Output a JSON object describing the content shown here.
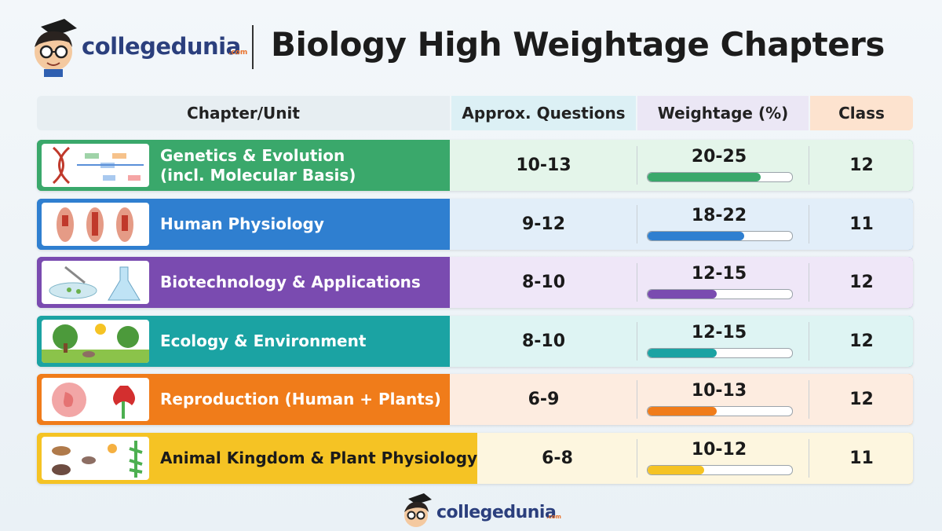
{
  "header": {
    "logo": "collegedunia",
    "logo_suffix": ".com",
    "title": "Biology High Weightage Chapters"
  },
  "table": {
    "columns": [
      "Chapter/Unit",
      "Approx. Questions",
      "Weightage (%)",
      "Class"
    ],
    "rows": [
      {
        "chapter": [
          "Genetics & Evolution",
          "(incl. Molecular Basis)"
        ],
        "questions": "10-13",
        "weightage": "20-25",
        "bar_fill": 78,
        "class": 12,
        "color": "#3aa86b",
        "tint": "#e4f5ea"
      },
      {
        "chapter": [
          "Human Physiology"
        ],
        "questions": "9-12",
        "weightage": "18-22",
        "bar_fill": 67,
        "class": 11,
        "color": "#2f7fd0",
        "tint": "#e2eef9"
      },
      {
        "chapter": [
          "Biotechnology & Applications"
        ],
        "questions": "8-10",
        "weightage": "12-15",
        "bar_fill": 48,
        "class": 12,
        "color": "#7a4bb0",
        "tint": "#efe7f8"
      },
      {
        "chapter": [
          "Ecology & Environment"
        ],
        "questions": "8-10",
        "weightage": "12-15",
        "bar_fill": 48,
        "class": 12,
        "color": "#1ba3a3",
        "tint": "#def4f3"
      },
      {
        "chapter": [
          "Reproduction (Human + Plants)"
        ],
        "questions": "6-9",
        "weightage": "10-13",
        "bar_fill": 48,
        "class": 12,
        "color": "#f07c1a",
        "tint": "#fdece0"
      },
      {
        "chapter": [
          "Animal Kingdom & Plant Physiology"
        ],
        "questions": "6-8",
        "weightage": "10-12",
        "bar_fill": 39,
        "class": 11,
        "color": "#f5c324",
        "tint": "#fdf6df"
      }
    ]
  },
  "footer": {
    "logo": "collegedunia",
    "logo_suffix": ".com"
  }
}
